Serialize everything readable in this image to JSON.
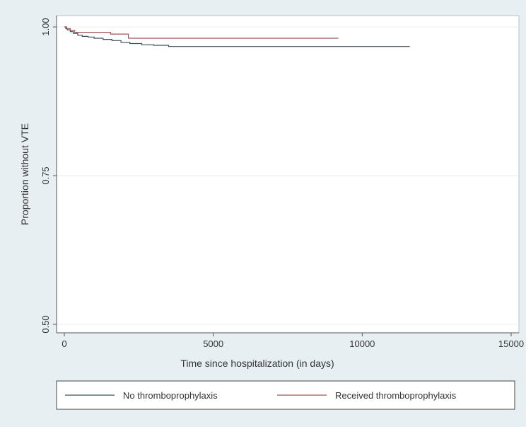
{
  "chart_data": {
    "type": "line",
    "title": "",
    "xlabel": "Time since hospitalization (in days)",
    "ylabel": "Proportion without VTE",
    "xlim": [
      0,
      15000
    ],
    "ylim": [
      0.5,
      1.0
    ],
    "x_ticks": [
      0,
      5000,
      10000,
      15000
    ],
    "x_tick_labels": [
      "0",
      "5000",
      "10000",
      "15000"
    ],
    "y_ticks": [
      0.5,
      0.75,
      1.0
    ],
    "y_tick_labels": [
      "0.50",
      "0.75",
      "1.00"
    ],
    "grid": "horizontal",
    "legend_position": "bottom",
    "series": [
      {
        "name": "No thromboprophylaxis",
        "color": "#3a4f5c",
        "step": true,
        "points": [
          [
            0,
            1.0
          ],
          [
            50,
            0.997
          ],
          [
            100,
            0.995
          ],
          [
            200,
            0.992
          ],
          [
            300,
            0.989
          ],
          [
            450,
            0.986
          ],
          [
            600,
            0.984
          ],
          [
            800,
            0.983
          ],
          [
            1000,
            0.981
          ],
          [
            1300,
            0.979
          ],
          [
            1600,
            0.977
          ],
          [
            1900,
            0.974
          ],
          [
            2200,
            0.972
          ],
          [
            2600,
            0.97
          ],
          [
            3000,
            0.969
          ],
          [
            3500,
            0.967
          ],
          [
            11600,
            0.967
          ]
        ]
      },
      {
        "name": "Received thromboprophylaxis",
        "color": "#9e5656",
        "step": true,
        "points": [
          [
            0,
            1.0
          ],
          [
            80,
            0.997
          ],
          [
            200,
            0.994
          ],
          [
            350,
            0.991
          ],
          [
            1500,
            0.991
          ],
          [
            1550,
            0.988
          ],
          [
            2100,
            0.988
          ],
          [
            2150,
            0.981
          ],
          [
            9200,
            0.981
          ]
        ]
      }
    ]
  }
}
